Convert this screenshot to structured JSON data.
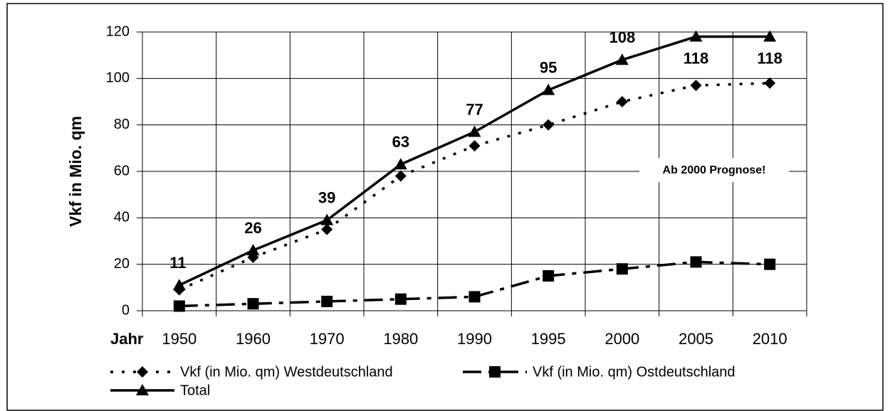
{
  "chart_data": {
    "type": "line",
    "y_label": "Vkf in Mio. qm",
    "x_label": "Jahr",
    "annotation": "Ab 2000 Prognose!",
    "categories": [
      "1950",
      "1960",
      "1970",
      "1980",
      "1990",
      "1995",
      "2000",
      "2005",
      "2010"
    ],
    "series": [
      {
        "name": "Vkf (in Mio. qm) Westdeutschland",
        "color": "#000000",
        "line_style": "dotted",
        "marker": "diamond",
        "values": [
          9,
          23,
          35,
          58,
          71,
          80,
          90,
          97,
          98
        ]
      },
      {
        "name": "Vkf (in Mio. qm) Ostdeutschland",
        "color": "#000000",
        "line_style": "dashed",
        "marker": "square",
        "values": [
          2,
          3,
          4,
          5,
          6,
          15,
          18,
          21,
          20
        ]
      },
      {
        "name": "Total",
        "color": "#000000",
        "line_style": "solid",
        "marker": "triangle",
        "values": [
          11,
          26,
          39,
          63,
          77,
          95,
          108,
          118,
          118
        ],
        "data_labels": true
      }
    ],
    "ylim": [
      0,
      120
    ],
    "yticks": [
      0,
      20,
      40,
      60,
      80,
      100,
      120
    ],
    "grid": true,
    "legend": "bottom"
  }
}
